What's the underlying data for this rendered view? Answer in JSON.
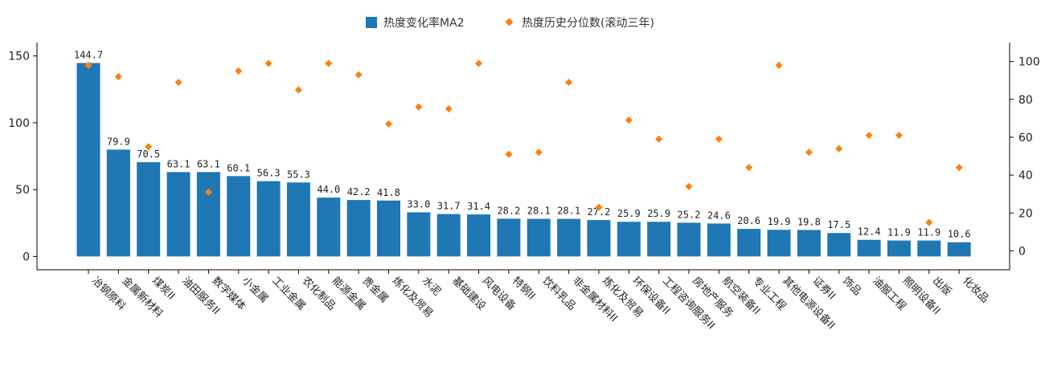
{
  "chart_data": {
    "type": "bar",
    "categories": [
      "冶钢原料",
      "金属新材料",
      "煤炭II",
      "油田服务II",
      "数字媒体",
      "小金属",
      "工业金属",
      "农化制品",
      "能源金属",
      "贵金属",
      "炼化及贸易",
      "水泥",
      "基础建设",
      "风电设备",
      "特钢II",
      "饮料乳品",
      "非金属材料II",
      "炼化及贸易",
      "环保设备II",
      "工程咨询服务II",
      "房地产服务",
      "航空装备II",
      "专业工程",
      "其他电源设备II",
      "证券II",
      "饰品",
      "油服工程",
      "照明设备II",
      "出版",
      "化妆品"
    ],
    "series": [
      {
        "name": "热度变化率MA2",
        "color": "#1f77b4",
        "axis": "left",
        "values": [
          144.7,
          79.9,
          70.5,
          63.1,
          63.1,
          60.1,
          56.3,
          55.3,
          44.0,
          42.2,
          41.8,
          33.0,
          31.7,
          31.4,
          28.2,
          28.1,
          28.1,
          27.2,
          25.9,
          25.9,
          25.2,
          24.6,
          20.6,
          19.9,
          19.8,
          17.5,
          12.4,
          11.9,
          11.9,
          10.6
        ],
        "labels": [
          "144.7",
          "79.9",
          "70.5",
          "63.1",
          "63.1",
          "60.1",
          "56.3",
          "55.3",
          "44.0",
          "42.2",
          "41.8",
          "33.0",
          "31.7",
          "31.4",
          "28.2",
          "28.1",
          "28.1",
          "27.2",
          "25.9",
          "25.9",
          "25.2",
          "24.6",
          "20.6",
          "19.9",
          "19.8",
          "17.5",
          "12.4",
          "11.9",
          "11.9",
          "10.6"
        ]
      },
      {
        "name": "热度历史分位数(滚动三年)",
        "color": "#ff7f0e",
        "axis": "right",
        "values": [
          98,
          92,
          55,
          89,
          31,
          95,
          99,
          85,
          99,
          93,
          67,
          76,
          75,
          99,
          51,
          52,
          89,
          23,
          69,
          59,
          34,
          59,
          44,
          98,
          52,
          54,
          61,
          61,
          15,
          44
        ]
      }
    ],
    "y_left": {
      "ylim": [
        -10,
        160
      ],
      "ticks": [
        0,
        50,
        100,
        150
      ]
    },
    "y_right": {
      "ylim": [
        -10,
        110
      ],
      "ticks": [
        0,
        20,
        40,
        60,
        80,
        100
      ]
    },
    "legend": "top-center",
    "grid": false
  }
}
